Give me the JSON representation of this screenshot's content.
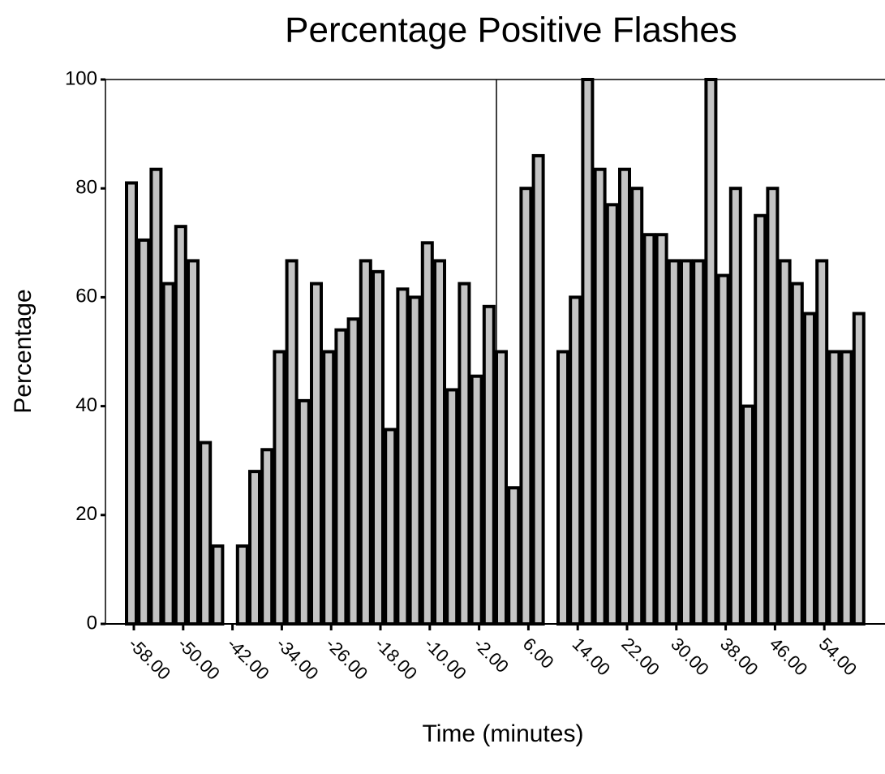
{
  "chart_data": {
    "type": "bar",
    "title": "Percentage Positive Flashes",
    "x_label": "Time (minutes)",
    "y_label": "Percentage",
    "categories": [
      "-58.00",
      null,
      null,
      null,
      "-50.00",
      null,
      null,
      null,
      "-42.00",
      null,
      null,
      null,
      "-34.00",
      null,
      null,
      null,
      "-26.00",
      null,
      null,
      null,
      "-18.00",
      null,
      null,
      null,
      "-10.00",
      null,
      null,
      null,
      "-2.00",
      null,
      null,
      null,
      "6.00",
      null,
      null,
      null,
      "14.00",
      null,
      null,
      null,
      "22.00",
      null,
      null,
      null,
      "30.00",
      null,
      null,
      null,
      "38.00",
      null,
      null,
      null,
      "46.00",
      null,
      null,
      null,
      "54.00",
      null,
      null,
      null
    ],
    "values": [
      81,
      70.5,
      83.5,
      62.5,
      73,
      66.7,
      33.3,
      14.3,
      0,
      14.3,
      28,
      32,
      50,
      66.7,
      41,
      62.5,
      50,
      54,
      56,
      66.7,
      64.7,
      35.7,
      61.5,
      60,
      70,
      66.7,
      43,
      62.5,
      45.5,
      58.3,
      50,
      25,
      80,
      86,
      0,
      50,
      60,
      100,
      83.5,
      77,
      83.5,
      80,
      71.5,
      71.5,
      66.7,
      66.7,
      66.7,
      100,
      64,
      80,
      40,
      75,
      80,
      66.7,
      62.5,
      57,
      66.7,
      50,
      50,
      57
    ],
    "color": "#c4c4c4",
    "ylim": [
      0,
      100
    ],
    "yticks": [
      0,
      20,
      40,
      60,
      80,
      100
    ]
  }
}
